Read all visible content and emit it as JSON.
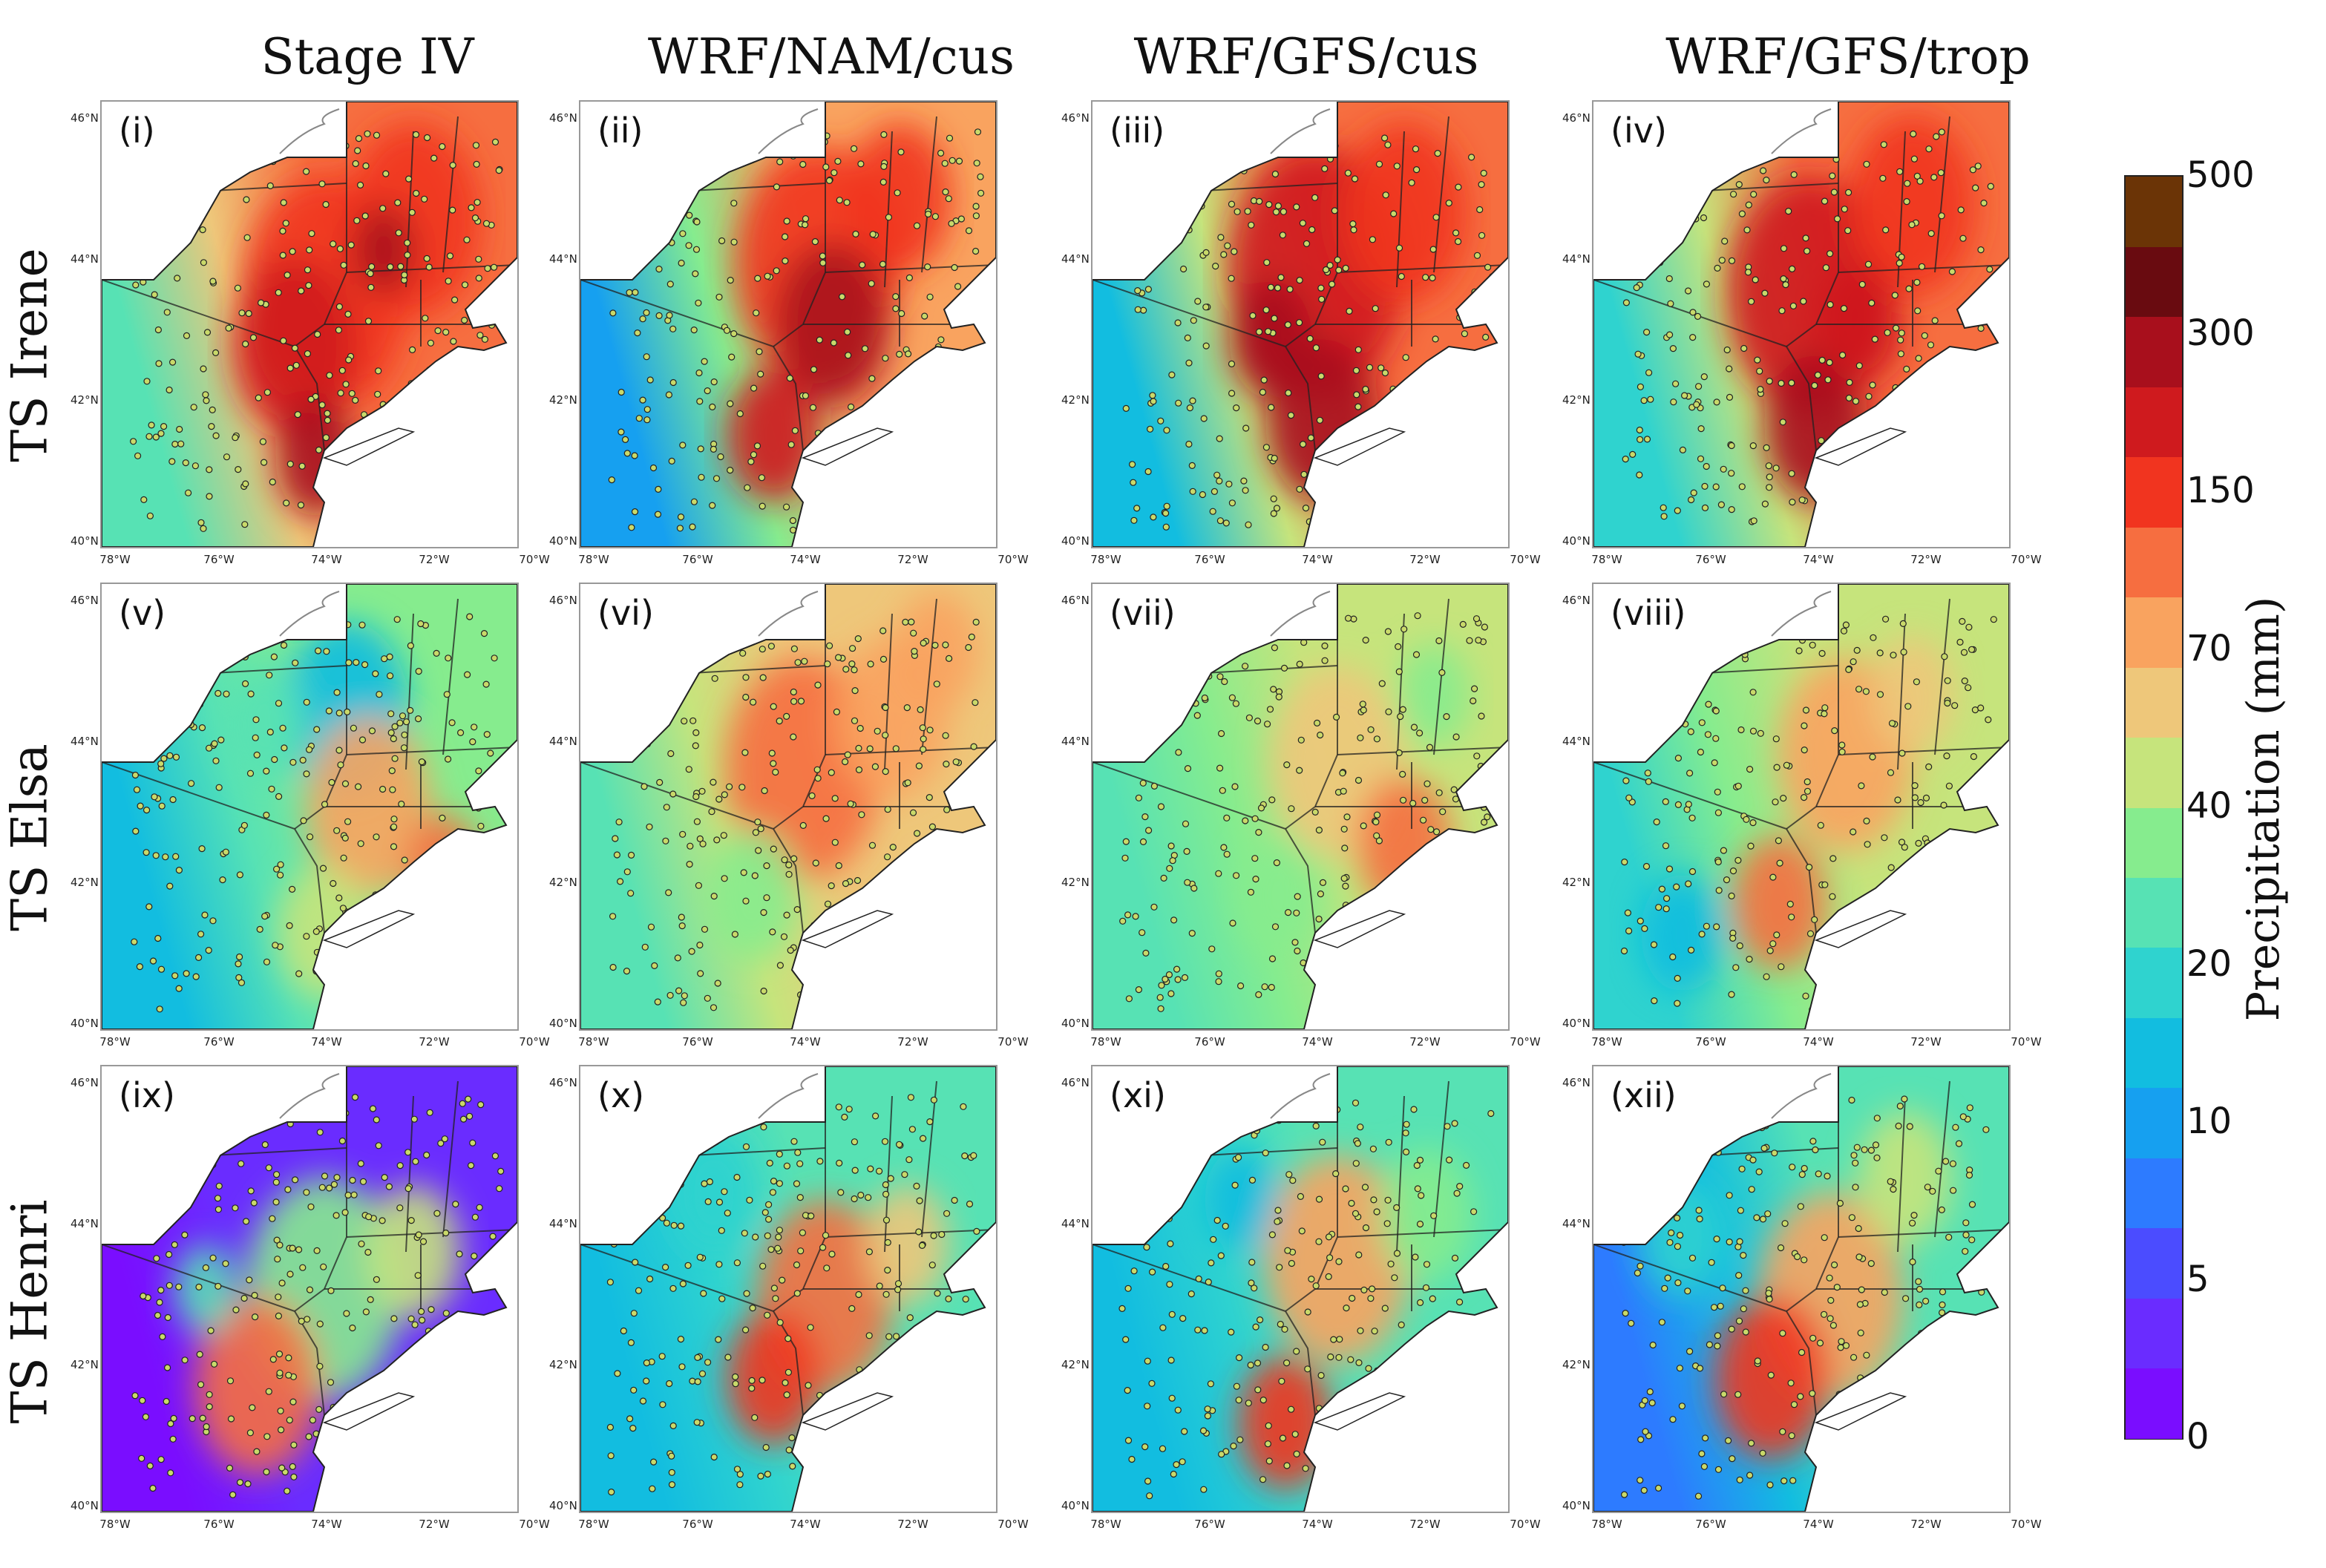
{
  "columns": [
    "Stage IV",
    "WRF/NAM/cus",
    "WRF/GFS/cus",
    "WRF/GFS/trop"
  ],
  "rows": [
    "TS Irene",
    "TS Elsa",
    "TS Henri"
  ],
  "panels": [
    {
      "label": "(i)"
    },
    {
      "label": "(ii)"
    },
    {
      "label": "(iii)"
    },
    {
      "label": "(iv)"
    },
    {
      "label": "(v)"
    },
    {
      "label": "(vi)"
    },
    {
      "label": "(vii)"
    },
    {
      "label": "(viii)"
    },
    {
      "label": "(ix)"
    },
    {
      "label": "(x)"
    },
    {
      "label": "(xi)"
    },
    {
      "label": "(xii)"
    }
  ],
  "lat_ticks": [
    "46°N",
    "44°N",
    "42°N",
    "40°N"
  ],
  "lon_ticks": [
    "78°W",
    "76°W",
    "74°W",
    "72°W",
    "70°W"
  ],
  "colorbar": {
    "title": "Precipitation (mm)",
    "tick_labels": [
      "500",
      "300",
      "150",
      "70",
      "40",
      "20",
      "10",
      "5",
      "0"
    ],
    "bins": [
      {
        "value": "0",
        "color": "#7a0dff"
      },
      {
        "value": "2.5",
        "color": "#6a2cff"
      },
      {
        "value": "5",
        "color": "#4b4cff"
      },
      {
        "value": "7.5",
        "color": "#2d7bff"
      },
      {
        "value": "10",
        "color": "#16a0f0"
      },
      {
        "value": "15",
        "color": "#12bde0"
      },
      {
        "value": "20",
        "color": "#2fd3cf"
      },
      {
        "value": "30",
        "color": "#57e2b4"
      },
      {
        "value": "40",
        "color": "#86ec8e"
      },
      {
        "value": "50",
        "color": "#c6e47c"
      },
      {
        "value": "70",
        "color": "#eec77a"
      },
      {
        "value": "100",
        "color": "#f9a35f"
      },
      {
        "value": "150",
        "color": "#f66e40"
      },
      {
        "value": "200",
        "color": "#f1341f"
      },
      {
        "value": "250",
        "color": "#cf1a1e"
      },
      {
        "value": "300",
        "color": "#a80f1c"
      },
      {
        "value": "400",
        "color": "#690b10"
      },
      {
        "value": "500",
        "color": "#6b3406"
      }
    ]
  },
  "colors": {
    "low": "#7a0dff",
    "mid": "#57e2b4",
    "high": "#f1341f",
    "station_fill": "#c9d96a",
    "border": "#222222"
  }
}
